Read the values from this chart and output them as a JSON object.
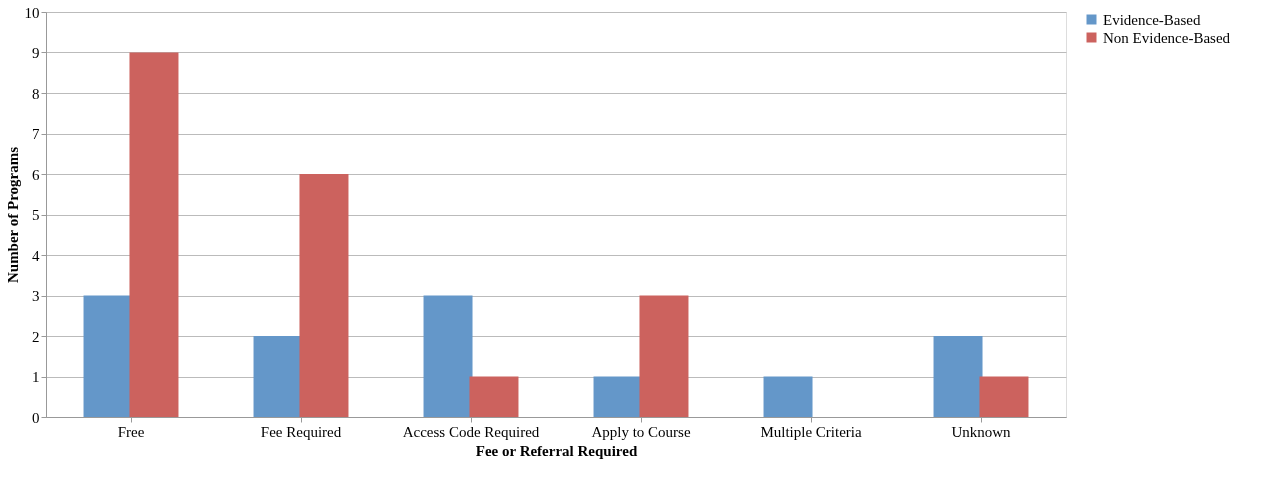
{
  "chart_data": {
    "type": "bar",
    "xlabel": "Fee or Referral Required",
    "ylabel": "Number of Programs",
    "categories": [
      "Free",
      "Fee Required",
      "Access Code Required",
      "Apply to Course",
      "Multiple Criteria",
      "Unknown"
    ],
    "series": [
      {
        "name": "Evidence-Based",
        "color": "#6497c9",
        "values": [
          3,
          2,
          3,
          1,
          1,
          2
        ]
      },
      {
        "name": "Non Evidence-Based",
        "color": "#cc625e",
        "values": [
          9,
          6,
          1,
          3,
          0,
          1
        ]
      }
    ],
    "ylim": [
      0,
      10
    ],
    "yticks": [
      0,
      1,
      2,
      3,
      4,
      5,
      6,
      7,
      8,
      9,
      10
    ],
    "grid": "y",
    "legend": "right"
  }
}
